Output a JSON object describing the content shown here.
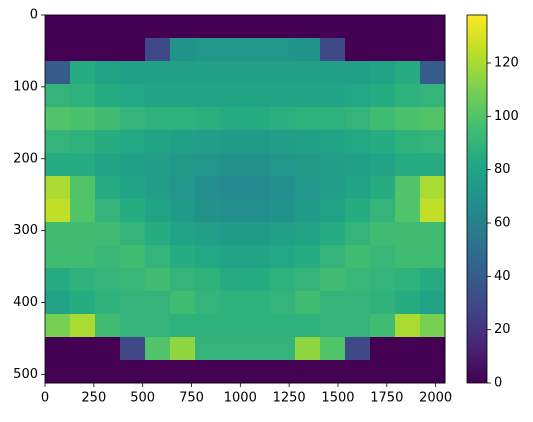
{
  "chart_data": {
    "type": "heatmap",
    "cmap": "viridis",
    "xlim": [
      0,
      2048
    ],
    "ylim": [
      512,
      0
    ],
    "xticks": [
      0,
      250,
      500,
      750,
      1000,
      1250,
      1500,
      1750,
      2000
    ],
    "yticks": [
      0,
      100,
      200,
      300,
      400,
      500
    ],
    "vlim": [
      0,
      138
    ],
    "colorbar_ticks": [
      0,
      20,
      40,
      60,
      80,
      100,
      120
    ],
    "z": [
      [
        0,
        0,
        0,
        0,
        0,
        0,
        0,
        0,
        0,
        0,
        0,
        0,
        0,
        0,
        0,
        0
      ],
      [
        0,
        0,
        0,
        0,
        30,
        70,
        72,
        72,
        72,
        72,
        70,
        30,
        0,
        0,
        0,
        0
      ],
      [
        40,
        85,
        80,
        78,
        78,
        78,
        78,
        78,
        78,
        78,
        78,
        78,
        78,
        80,
        85,
        40
      ],
      [
        90,
        88,
        85,
        82,
        80,
        80,
        80,
        80,
        80,
        80,
        80,
        80,
        82,
        85,
        88,
        90
      ],
      [
        100,
        98,
        95,
        90,
        88,
        88,
        87,
        85,
        85,
        87,
        88,
        88,
        90,
        95,
        98,
        100
      ],
      [
        90,
        88,
        85,
        82,
        80,
        78,
        76,
        75,
        75,
        76,
        78,
        80,
        82,
        85,
        88,
        90
      ],
      [
        85,
        85,
        80,
        78,
        76,
        74,
        72,
        70,
        70,
        72,
        74,
        76,
        78,
        80,
        85,
        85
      ],
      [
        120,
        100,
        85,
        80,
        76,
        72,
        68,
        65,
        65,
        68,
        72,
        76,
        80,
        85,
        100,
        120
      ],
      [
        125,
        100,
        90,
        85,
        80,
        75,
        70,
        68,
        68,
        70,
        75,
        80,
        85,
        90,
        100,
        125
      ],
      [
        95,
        95,
        95,
        90,
        85,
        80,
        78,
        75,
        75,
        78,
        80,
        85,
        90,
        95,
        95,
        95
      ],
      [
        95,
        95,
        92,
        95,
        90,
        85,
        82,
        80,
        80,
        82,
        85,
        90,
        95,
        92,
        95,
        95
      ],
      [
        85,
        88,
        90,
        92,
        95,
        90,
        88,
        85,
        85,
        88,
        90,
        95,
        92,
        90,
        88,
        85
      ],
      [
        80,
        85,
        88,
        90,
        90,
        95,
        90,
        88,
        88,
        90,
        95,
        90,
        90,
        88,
        85,
        80
      ],
      [
        110,
        120,
        95,
        90,
        90,
        88,
        88,
        88,
        88,
        88,
        88,
        90,
        90,
        95,
        120,
        110
      ],
      [
        0,
        0,
        0,
        30,
        100,
        115,
        90,
        90,
        90,
        90,
        115,
        100,
        30,
        0,
        0,
        0
      ],
      [
        0,
        0,
        0,
        0,
        0,
        0,
        0,
        0,
        0,
        0,
        0,
        0,
        0,
        0,
        0,
        0
      ]
    ]
  }
}
